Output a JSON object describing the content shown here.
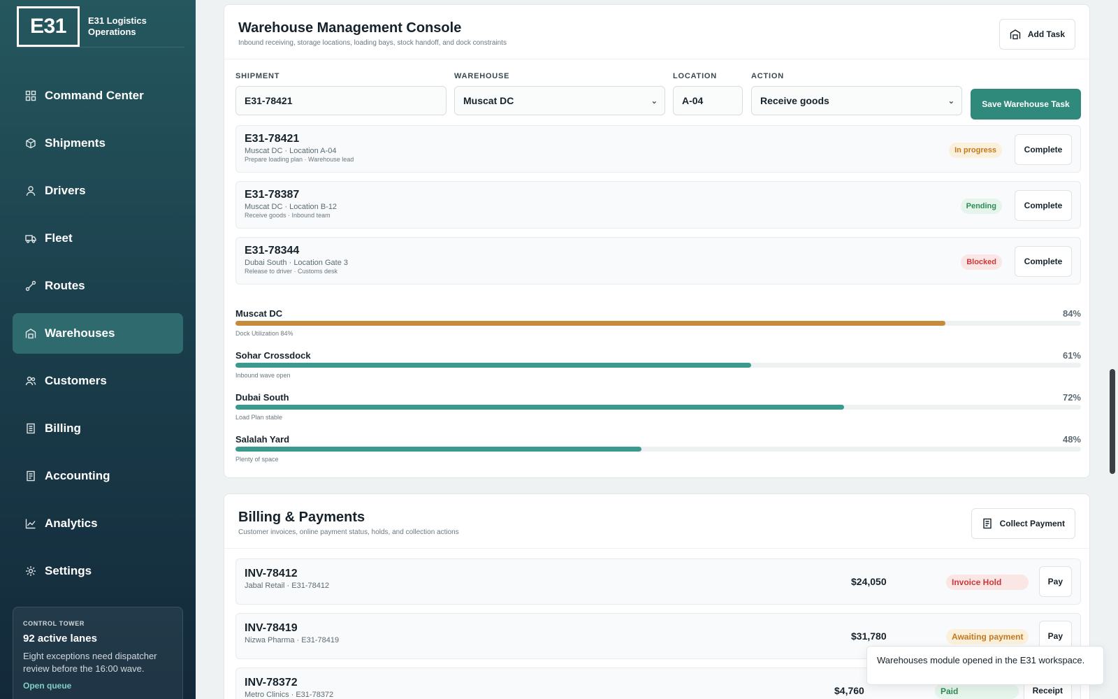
{
  "brand": {
    "logo": "E31",
    "name": "E31 Logistics Operations"
  },
  "nav": [
    {
      "label": "Command Center",
      "icon": "grid-icon"
    },
    {
      "label": "Shipments",
      "icon": "box-icon"
    },
    {
      "label": "Drivers",
      "icon": "person-icon"
    },
    {
      "label": "Fleet",
      "icon": "truck-icon"
    },
    {
      "label": "Routes",
      "icon": "route-icon"
    },
    {
      "label": "Warehouses",
      "icon": "warehouse-icon",
      "active": true
    },
    {
      "label": "Customers",
      "icon": "people-icon"
    },
    {
      "label": "Billing",
      "icon": "document-icon"
    },
    {
      "label": "Accounting",
      "icon": "ledger-icon"
    },
    {
      "label": "Analytics",
      "icon": "chart-icon"
    },
    {
      "label": "Settings",
      "icon": "gear-icon"
    }
  ],
  "tower": {
    "kicker": "CONTROL TOWER",
    "title": "92 active lanes",
    "desc": "Eight exceptions need dispatcher review before the 16:00 wave.",
    "link": "Open queue"
  },
  "warehouse": {
    "title": "Warehouse Management Console",
    "subtitle": "Inbound receiving, storage locations, loading bays, stock handoff, and dock constraints",
    "add_task": "Add Task",
    "form": {
      "shipment_label": "SHIPMENT",
      "shipment_value": "E31-78421",
      "warehouse_label": "WAREHOUSE",
      "warehouse_value": "Muscat DC",
      "location_label": "LOCATION",
      "location_value": "A-04",
      "action_label": "ACTION",
      "action_value": "Receive goods",
      "save": "Save Warehouse Task"
    },
    "tasks": [
      {
        "id": "E31-78421",
        "loc": "Muscat DC · Location A-04",
        "note": "Prepare loading plan · Warehouse lead",
        "status": "In progress",
        "action": "Complete"
      },
      {
        "id": "E31-78387",
        "loc": "Muscat DC · Location B-12",
        "note": "Receive goods · Inbound team",
        "status": "Pending",
        "action": "Complete"
      },
      {
        "id": "E31-78344",
        "loc": "Dubai South · Location Gate 3",
        "note": "Release to driver · Customs desk",
        "status": "Blocked",
        "action": "Complete"
      }
    ],
    "utilization": [
      {
        "name": "Muscat DC",
        "pct": "84%",
        "value": 0.84,
        "note": "Dock Utilization 84%",
        "color": "#c58a3a"
      },
      {
        "name": "Sohar Crossdock",
        "pct": "61%",
        "value": 0.61,
        "note": "Inbound wave open",
        "color": "#3b9a8e"
      },
      {
        "name": "Dubai South",
        "pct": "72%",
        "value": 0.72,
        "note": "Load Plan stable",
        "color": "#3b9a8e"
      },
      {
        "name": "Salalah Yard",
        "pct": "48%",
        "value": 0.48,
        "note": "Plenty of space",
        "color": "#3b9a8e"
      }
    ]
  },
  "billing": {
    "title": "Billing & Payments",
    "subtitle": "Customer invoices, online payment status, holds, and collection actions",
    "collect": "Collect Payment",
    "invoices": [
      {
        "id": "INV-78412",
        "sub": "Jabal Retail · E31-78412",
        "amount": "$24,050",
        "status": "Invoice Hold",
        "action": "Pay"
      },
      {
        "id": "INV-78419",
        "sub": "Nizwa Pharma · E31-78419",
        "amount": "$31,780",
        "status": "Awaiting payment",
        "action": "Pay"
      },
      {
        "id": "INV-78372",
        "sub": "Metro Clinics · E31-78372",
        "amount": "$4,760",
        "status": "Paid",
        "action": "Receipt"
      }
    ]
  },
  "toast": "Warehouses module opened in the E31 workspace."
}
